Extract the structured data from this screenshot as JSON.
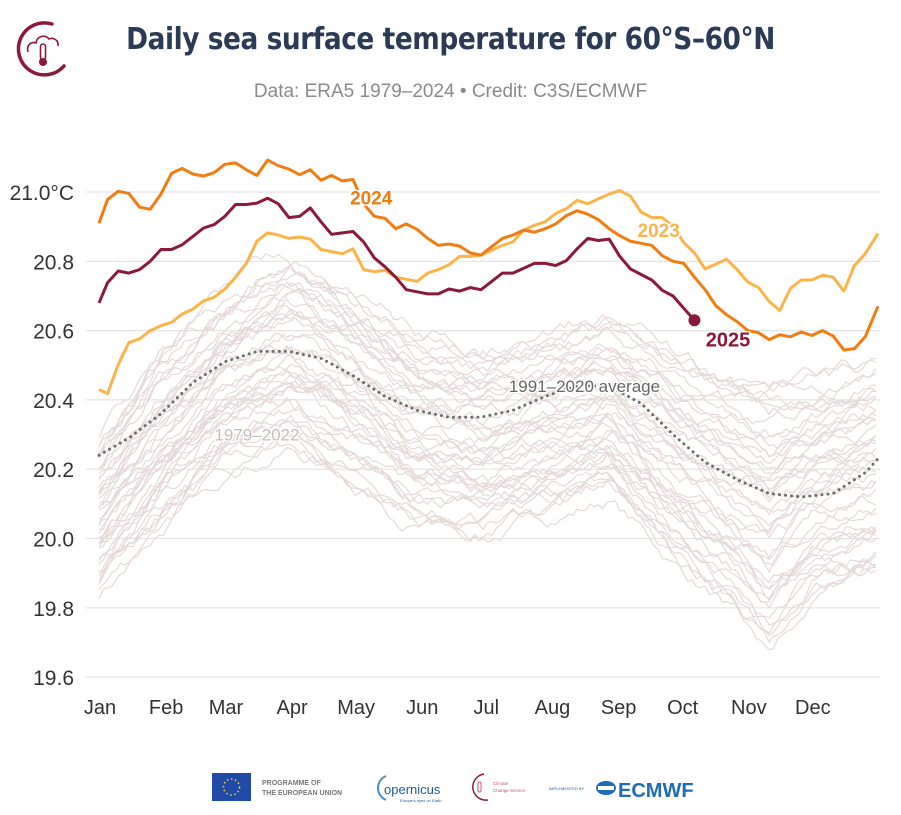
{
  "header": {
    "title": "Daily sea surface temperature for 60°S–60°N",
    "subtitle": "Data: ERA5 1979–2024 • Credit: C3S/ECMWF",
    "logo_icon": "cloud-thermometer-icon"
  },
  "footer": {
    "eu_label_line1": "PROGRAMME OF",
    "eu_label_line2": "THE EUROPEAN UNION",
    "copernicus_label": "opernicus",
    "copernicus_tagline": "Europe's eyes on Earth",
    "c3s_line1": "Climate",
    "c3s_line2": "Change Service",
    "implemented_by": "IMPLEMENTED BY",
    "ecmwf_label": "ECMWF"
  },
  "colors": {
    "y2025": "#8b1a3a",
    "y2024": "#f07c12",
    "y2023": "#fbb44a",
    "historical": "#e5d9d7",
    "average": "#6e6e6e",
    "grid": "#e3e3e3",
    "title": "#2b3a55",
    "axis_text": "#333333"
  },
  "chart_data": {
    "type": "line",
    "title": "Daily sea surface temperature for 60°S–60°N",
    "xlabel": "",
    "ylabel": "°C",
    "ylim": [
      19.6,
      21.1
    ],
    "xlim": [
      1,
      366
    ],
    "grid": true,
    "yticks": [
      19.6,
      19.8,
      20.0,
      20.2,
      20.4,
      20.6,
      20.8,
      21.0
    ],
    "ytick_labels": [
      "19.6",
      "19.8",
      "20.0",
      "20.2",
      "20.4",
      "20.6",
      "20.8",
      "21.0°C"
    ],
    "xticks": [
      1,
      32,
      60,
      91,
      121,
      152,
      182,
      213,
      244,
      274,
      305,
      335
    ],
    "xtick_labels": [
      "Jan",
      "Feb",
      "Mar",
      "Apr",
      "May",
      "Jun",
      "Jul",
      "Aug",
      "Sep",
      "Oct",
      "Nov",
      "Dec"
    ],
    "annotations": [
      {
        "text": "2024",
        "series": "2024",
        "x": 121,
        "y": 20.99
      },
      {
        "text": "2023",
        "series": "2023",
        "x": 258,
        "y": 20.89
      },
      {
        "text": "2025",
        "series": "2025",
        "x": 282,
        "y": 20.58
      },
      {
        "text": "1991–2020 average",
        "series": "1991–2020 average",
        "x": 213,
        "y": 20.44
      },
      {
        "text": "1979–2022",
        "series": "1979–2022",
        "x": 75,
        "y": 20.3
      }
    ],
    "series": [
      {
        "name": "2024",
        "x": [
          1,
          5,
          10,
          15,
          20,
          25,
          30,
          35,
          40,
          45,
          50,
          55,
          60,
          65,
          70,
          75,
          80,
          85,
          90,
          95,
          100,
          105,
          110,
          115,
          120,
          125,
          130,
          135,
          140,
          145,
          150,
          155,
          160,
          165,
          170,
          175,
          180,
          185,
          190,
          195,
          200,
          205,
          210,
          215,
          220,
          225,
          230,
          235,
          240,
          245,
          250,
          255,
          260,
          265,
          270,
          275,
          280,
          285,
          290,
          295,
          300,
          305,
          310,
          315,
          320,
          325,
          330,
          335,
          340,
          345,
          350,
          355,
          360,
          366
        ],
        "values": [
          20.91,
          20.98,
          21.0,
          20.99,
          20.96,
          20.95,
          20.99,
          21.06,
          21.07,
          21.05,
          21.04,
          21.06,
          21.08,
          21.08,
          21.07,
          21.05,
          21.09,
          21.07,
          21.07,
          21.05,
          21.06,
          21.04,
          21.05,
          21.03,
          21.03,
          20.97,
          20.93,
          20.92,
          20.9,
          20.91,
          20.89,
          20.86,
          20.85,
          20.85,
          20.84,
          20.83,
          20.82,
          20.84,
          20.86,
          20.88,
          20.89,
          20.88,
          20.9,
          20.91,
          20.93,
          20.94,
          20.94,
          20.92,
          20.89,
          20.88,
          20.86,
          20.85,
          20.84,
          20.82,
          20.8,
          20.79,
          20.76,
          20.72,
          20.67,
          20.64,
          20.63,
          20.6,
          20.59,
          20.58,
          20.59,
          20.58,
          20.59,
          20.59,
          20.6,
          20.58,
          20.55,
          20.55,
          20.58,
          20.67
        ]
      },
      {
        "name": "2023",
        "x": [
          1,
          5,
          10,
          15,
          20,
          25,
          30,
          35,
          40,
          45,
          50,
          55,
          60,
          65,
          70,
          75,
          80,
          85,
          90,
          95,
          100,
          105,
          110,
          115,
          120,
          125,
          130,
          135,
          140,
          145,
          150,
          155,
          160,
          165,
          170,
          175,
          180,
          185,
          190,
          195,
          200,
          205,
          210,
          215,
          220,
          225,
          230,
          235,
          240,
          245,
          250,
          255,
          260,
          265,
          270,
          275,
          280,
          285,
          290,
          295,
          300,
          305,
          310,
          315,
          320,
          325,
          330,
          335,
          340,
          345,
          350,
          355,
          360,
          366
        ],
        "values": [
          20.43,
          20.42,
          20.5,
          20.56,
          20.58,
          20.6,
          20.61,
          20.63,
          20.65,
          20.66,
          20.68,
          20.7,
          20.72,
          20.75,
          20.8,
          20.86,
          20.88,
          20.87,
          20.87,
          20.87,
          20.86,
          20.84,
          20.83,
          20.82,
          20.83,
          20.78,
          20.77,
          20.77,
          20.76,
          20.75,
          20.74,
          20.76,
          20.78,
          20.79,
          20.81,
          20.82,
          20.82,
          20.83,
          20.84,
          20.86,
          20.89,
          20.9,
          20.92,
          20.94,
          20.95,
          20.97,
          20.97,
          20.98,
          20.99,
          21.01,
          20.99,
          20.94,
          20.92,
          20.93,
          20.9,
          20.85,
          20.83,
          20.78,
          20.79,
          20.8,
          20.78,
          20.74,
          20.72,
          20.69,
          20.66,
          20.72,
          20.74,
          20.75,
          20.76,
          20.75,
          20.72,
          20.79,
          20.82,
          20.88
        ]
      },
      {
        "name": "2025",
        "x": [
          1,
          5,
          10,
          15,
          20,
          25,
          30,
          35,
          40,
          45,
          50,
          55,
          60,
          65,
          70,
          75,
          80,
          85,
          90,
          95,
          100,
          105,
          110,
          115,
          120,
          125,
          130,
          135,
          140,
          145,
          150,
          155,
          160,
          165,
          170,
          175,
          180,
          185,
          190,
          195,
          200,
          205,
          210,
          215,
          220,
          225,
          230,
          235,
          240,
          245,
          250,
          255,
          260,
          265,
          270,
          275,
          280
        ],
        "values": [
          20.68,
          20.74,
          20.77,
          20.76,
          20.78,
          20.8,
          20.83,
          20.84,
          20.85,
          20.87,
          20.89,
          20.91,
          20.93,
          20.96,
          20.97,
          20.97,
          20.98,
          20.96,
          20.93,
          20.93,
          20.95,
          20.92,
          20.88,
          20.88,
          20.88,
          20.86,
          20.81,
          20.78,
          20.76,
          20.72,
          20.71,
          20.7,
          20.71,
          20.72,
          20.71,
          20.73,
          20.72,
          20.74,
          20.76,
          20.77,
          20.78,
          20.79,
          20.8,
          20.79,
          20.8,
          20.83,
          20.87,
          20.86,
          20.86,
          20.82,
          20.78,
          20.76,
          20.74,
          20.72,
          20.7,
          20.66,
          20.63
        ]
      },
      {
        "name": "1991–2020 average",
        "style": "dotted",
        "x": [
          1,
          15,
          30,
          45,
          60,
          75,
          90,
          105,
          120,
          135,
          150,
          165,
          180,
          195,
          210,
          225,
          240,
          255,
          270,
          285,
          300,
          315,
          330,
          345,
          360,
          366
        ],
        "values": [
          20.24,
          20.29,
          20.36,
          20.45,
          20.51,
          20.54,
          20.54,
          20.52,
          20.47,
          20.41,
          20.37,
          20.35,
          20.35,
          20.37,
          20.41,
          20.44,
          20.44,
          20.39,
          20.3,
          20.22,
          20.17,
          20.13,
          20.12,
          20.13,
          20.19,
          20.23
        ]
      }
    ],
    "historical_band": {
      "name": "1979–2022",
      "description": "44 individual daily series, light grey-pink, ranging roughly 19.6–20.9",
      "lower_envelope": {
        "x": [
          1,
          30,
          60,
          90,
          120,
          150,
          180,
          210,
          240,
          270,
          300,
          315,
          335,
          366
        ],
        "values": [
          19.78,
          19.95,
          20.12,
          20.18,
          20.1,
          19.98,
          19.93,
          19.98,
          20.05,
          19.85,
          19.7,
          19.58,
          19.75,
          19.8
        ]
      },
      "upper_envelope": {
        "x": [
          1,
          30,
          60,
          90,
          120,
          150,
          180,
          210,
          240,
          270,
          300,
          335,
          366
        ],
        "values": [
          20.35,
          20.6,
          20.78,
          20.9,
          20.78,
          20.66,
          20.62,
          20.66,
          20.7,
          20.62,
          20.55,
          20.55,
          20.6
        ]
      }
    }
  }
}
